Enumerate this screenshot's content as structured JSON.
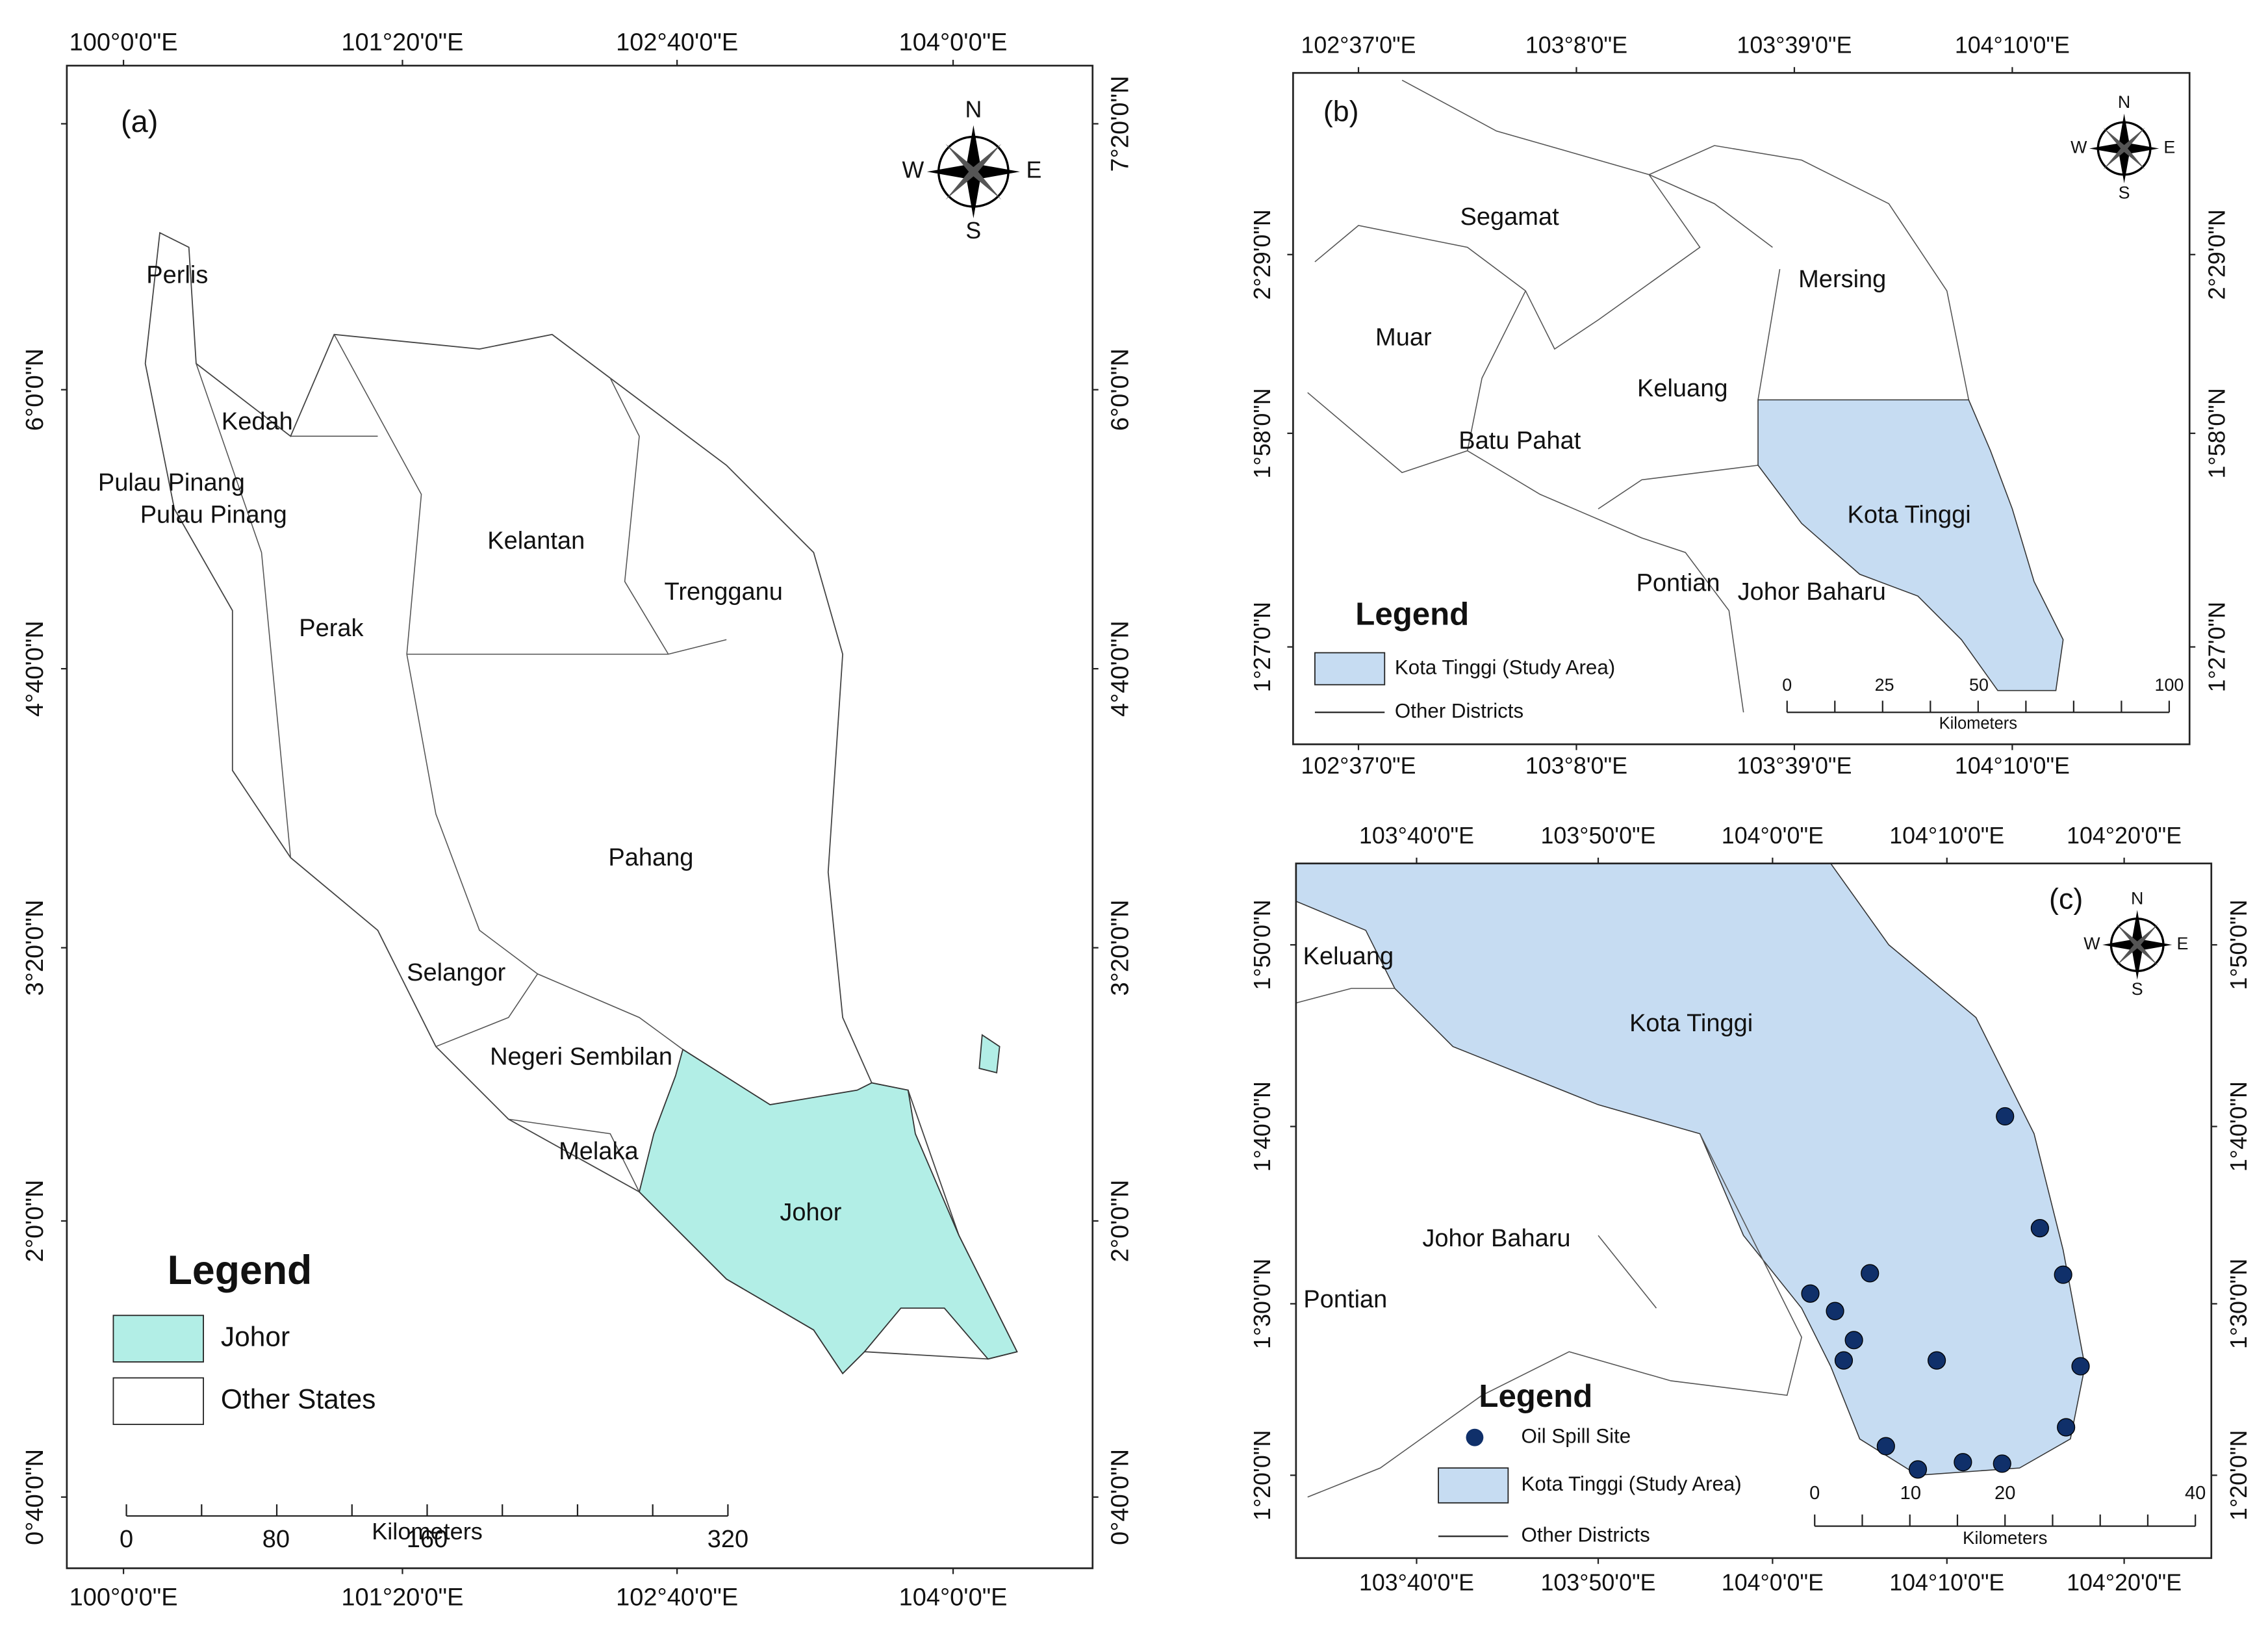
{
  "panels": [
    {
      "label": "(a)",
      "lon_labels": [
        "100°0'0\"E",
        "101°20'0\"E",
        "102°40'0\"E",
        "104°0'0\"E"
      ],
      "lat_labels": [
        "7°20'0\"N",
        "6°0'0\"N",
        "4°40'0\"N",
        "3°20'0\"N",
        "2°0'0\"N",
        "0°40'0\"N"
      ],
      "places": [
        "Perlis",
        "Kedah",
        "Pulau Pinang",
        "Pulau Pinang",
        "Kelantan",
        "Trengganu",
        "Perak",
        "Pahang",
        "Selangor",
        "Negeri Sembilan",
        "Melaka",
        "Johor"
      ],
      "legend": {
        "title": "Legend",
        "items": [
          "Johor",
          "Other States"
        ]
      },
      "scale": {
        "ticks": [
          "0",
          "80",
          "160",
          "320"
        ],
        "unit": "Kilometers"
      },
      "compass": [
        "N",
        "E",
        "S",
        "W"
      ]
    },
    {
      "label": "(b)",
      "lon_labels": [
        "102°37'0\"E",
        "103°8'0\"E",
        "103°39'0\"E",
        "104°10'0\"E"
      ],
      "lat_labels": [
        "2°29'0\"N",
        "1°58'0\"N",
        "1°27'0\"N"
      ],
      "places": [
        "Segamat",
        "Mersing",
        "Muar",
        "Keluang",
        "Batu Pahat",
        "Kota Tinggi",
        "Pontian",
        "Johor Baharu"
      ],
      "legend": {
        "title": "Legend",
        "items": [
          "Kota Tinggi (Study Area)",
          "Other Districts"
        ]
      },
      "scale": {
        "ticks": [
          "0",
          "25",
          "50",
          "100"
        ],
        "unit": "Kilometers"
      },
      "compass": [
        "N",
        "E",
        "S",
        "W"
      ]
    },
    {
      "label": "(c)",
      "lon_labels": [
        "103°40'0\"E",
        "103°50'0\"E",
        "104°0'0\"E",
        "104°10'0\"E",
        "104°20'0\"E"
      ],
      "lat_labels": [
        "1°50'0\"N",
        "1°40'0\"N",
        "1°30'0\"N",
        "1°20'0\"N"
      ],
      "places": [
        "Keluang",
        "Kota Tinggi",
        "Johor Baharu",
        "Pontian"
      ],
      "legend": {
        "title": "Legend",
        "items": [
          "Oil Spill Site",
          "Kota Tinggi (Study Area)",
          "Other Districts"
        ]
      },
      "scale": {
        "ticks": [
          "0",
          "10",
          "20",
          "40"
        ],
        "unit": "Kilometers"
      },
      "compass": [
        "N",
        "E",
        "S",
        "W"
      ]
    }
  ]
}
